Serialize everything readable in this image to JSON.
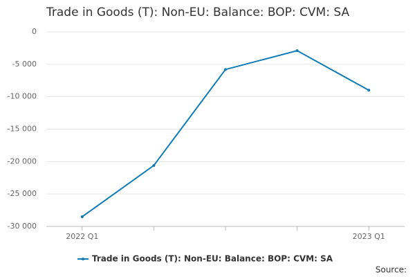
{
  "chart_data": {
    "type": "line",
    "title": "Trade in Goods (T): Non-EU: Balance: BOP: CVM: SA",
    "categories": [
      "2022 Q1",
      null,
      null,
      null,
      "2023 Q1"
    ],
    "series": [
      {
        "name": "Trade in Goods (T): Non-EU: Balance: BOP: CVM: SA",
        "color": "#0f7cb8",
        "values": [
          -28500,
          -20600,
          -5800,
          -2900,
          -9000
        ]
      }
    ],
    "ylim": [
      -30000,
      0
    ],
    "yticks": [
      {
        "value": -30000,
        "label": "-30 000"
      },
      {
        "value": -25000,
        "label": "-25 000"
      },
      {
        "value": -20000,
        "label": "-20 000"
      },
      {
        "value": -15000,
        "label": "-15 000"
      },
      {
        "value": -10000,
        "label": "-10 000"
      },
      {
        "value": -5000,
        "label": "-5 000"
      },
      0
    ],
    "grid": true,
    "legend": "bottom",
    "source": "Source:"
  }
}
